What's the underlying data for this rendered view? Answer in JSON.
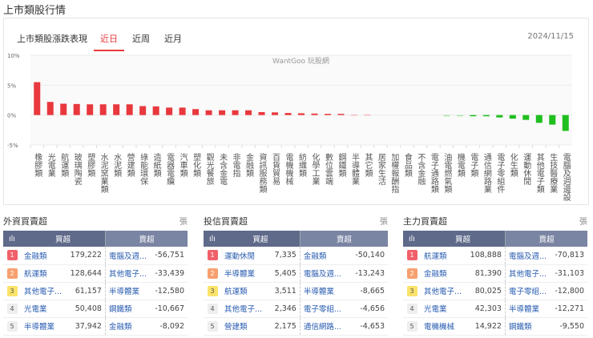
{
  "page_title": "上市類股行情",
  "chart_card": {
    "title": "上市類股漲跌表現",
    "tabs": [
      "近日",
      "近周",
      "近月"
    ],
    "active_tab": 0,
    "date": "2024/11/15",
    "watermark": "WantGoo 玩股網"
  },
  "colors": {
    "up": "#e8383d",
    "up_light": "#f4b8bb",
    "down": "#1fbf1f",
    "down_light": "#a8e6a8"
  },
  "chart_data": {
    "type": "bar",
    "ylim": [
      -5,
      10
    ],
    "yticks": [
      "10%",
      "5%",
      "0%",
      "-5%"
    ],
    "ytick_values": [
      10,
      5,
      0,
      -5
    ],
    "categories": [
      "橡膠類",
      "光電業",
      "航運類",
      "玻璃陶瓷",
      "塑膠類",
      "水泥窯業類",
      "水泥類",
      "營建類",
      "綠能環保",
      "造紙類",
      "電器電纜",
      "汽車類",
      "塑化類",
      "觀光餐旅",
      "未含金電",
      "非電指",
      "金融類",
      "資訊服務類",
      "百貨貿易",
      "電機機械",
      "紡織類",
      "化學工業",
      "數位雲端",
      "鋼鐵類",
      "半導體業",
      "其它類",
      "居家生活",
      "加權報酬指",
      "食品類",
      "不含金融",
      "電子通路類",
      "油電燃氣類",
      "機電類",
      "電子類",
      "通信網路業",
      "電子零組件",
      "化生類",
      "運動休閒",
      "其他電子類",
      "生技醫療業",
      "電腦及週邊設"
    ],
    "values": [
      5.5,
      2.2,
      1.9,
      1.85,
      1.8,
      1.8,
      1.8,
      1.8,
      1.5,
      1.45,
      1.25,
      1.25,
      1.0,
      0.8,
      0.8,
      0.8,
      0.8,
      0.5,
      0.45,
      0.35,
      0.3,
      0.25,
      0.2,
      0.2,
      0.1,
      0.1,
      0,
      0,
      0,
      0,
      0,
      -0.05,
      -0.05,
      -0.15,
      -0.2,
      -0.4,
      -0.6,
      -0.8,
      -1.3,
      -1.6,
      -2.65
    ]
  },
  "panels": [
    {
      "title": "外資買賣超",
      "unit": "張",
      "buy_header": "買超",
      "sell_header": "賣超",
      "rows": [
        {
          "rank": "1",
          "buy": "金融類",
          "buy_val": "179,222",
          "sell": "電腦及週...",
          "sell_val": "-56,751"
        },
        {
          "rank": "2",
          "buy": "航運類",
          "buy_val": "128,644",
          "sell": "其他電子...",
          "sell_val": "-33,439"
        },
        {
          "rank": "3",
          "buy": "其他電子...",
          "buy_val": "61,157",
          "sell": "半導體業",
          "sell_val": "-12,580"
        },
        {
          "rank": "4",
          "buy": "光電業",
          "buy_val": "50,408",
          "sell": "鋼鐵類",
          "sell_val": "-10,667"
        },
        {
          "rank": "5",
          "buy": "半導體業",
          "buy_val": "37,942",
          "sell": "金融類",
          "sell_val": "-8,092"
        }
      ]
    },
    {
      "title": "投信買賣超",
      "unit": "張",
      "buy_header": "買超",
      "sell_header": "賣超",
      "rows": [
        {
          "rank": "1",
          "buy": "運動休閒",
          "buy_val": "7,335",
          "sell": "金融類",
          "sell_val": "-50,140"
        },
        {
          "rank": "2",
          "buy": "半導體業",
          "buy_val": "5,405",
          "sell": "電腦及週...",
          "sell_val": "-13,243"
        },
        {
          "rank": "3",
          "buy": "航運類",
          "buy_val": "3,511",
          "sell": "半導體業",
          "sell_val": "-8,665"
        },
        {
          "rank": "4",
          "buy": "其他電子...",
          "buy_val": "2,346",
          "sell": "電子零組...",
          "sell_val": "-4,656"
        },
        {
          "rank": "5",
          "buy": "營建類",
          "buy_val": "2,175",
          "sell": "通信網路...",
          "sell_val": "-4,653"
        }
      ]
    },
    {
      "title": "主力買賣超",
      "unit": "張",
      "buy_header": "買超",
      "sell_header": "賣超",
      "rows": [
        {
          "rank": "1",
          "buy": "航運類",
          "buy_val": "108,888",
          "sell": "電腦及週...",
          "sell_val": "-70,813"
        },
        {
          "rank": "2",
          "buy": "金融類",
          "buy_val": "81,390",
          "sell": "其他電子...",
          "sell_val": "-31,103"
        },
        {
          "rank": "3",
          "buy": "其他電子...",
          "buy_val": "80,025",
          "sell": "電子零組...",
          "sell_val": "-12,800"
        },
        {
          "rank": "4",
          "buy": "光電業",
          "buy_val": "42,303",
          "sell": "半導體業",
          "sell_val": "-12,271"
        },
        {
          "rank": "5",
          "buy": "電機機械",
          "buy_val": "14,922",
          "sell": "鋼鐵類",
          "sell_val": "-9,550"
        }
      ]
    }
  ]
}
